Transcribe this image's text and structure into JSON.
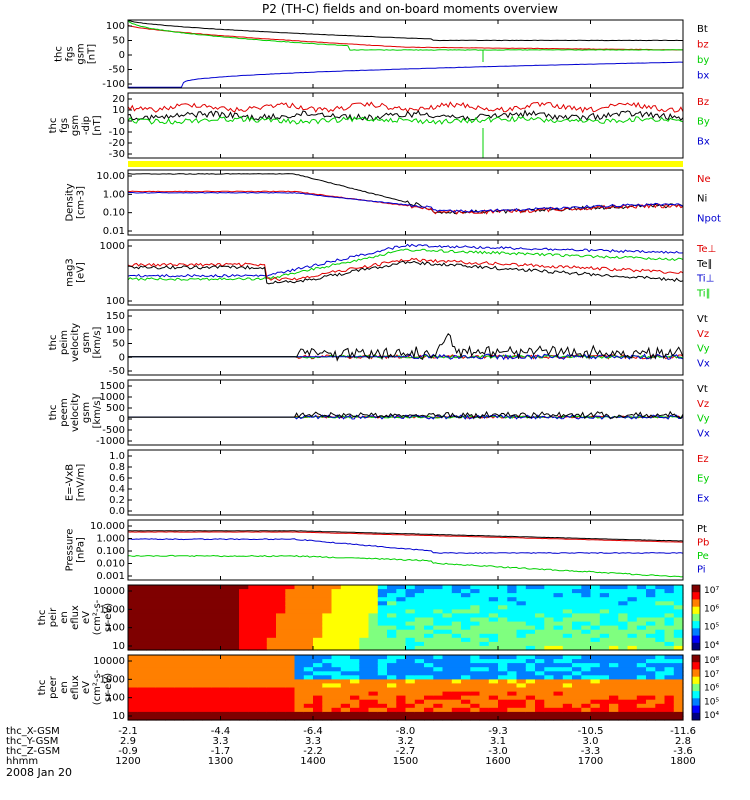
{
  "title": "P2 (TH-C) fields and on-board moments overview",
  "date": "2008 Jan 20",
  "colors": {
    "black": "#000000",
    "red": "#e00000",
    "green": "#00d000",
    "blue": "#0000d0",
    "yellow": "#ffff00"
  },
  "chart_data": [
    {
      "type": "line",
      "ylabel": [
        "thc",
        "fgs",
        "gsm",
        "[nT]"
      ],
      "yticks": [
        "100",
        "50",
        "0",
        "-50",
        "-100"
      ],
      "ylim": [
        -100,
        100
      ],
      "series": [
        {
          "name": "Bt",
          "color": "black"
        },
        {
          "name": "bz",
          "color": "red"
        },
        {
          "name": "by",
          "color": "green"
        },
        {
          "name": "bx",
          "color": "blue"
        }
      ]
    },
    {
      "type": "line",
      "ylabel": [
        "thc",
        "fgs",
        "gsm",
        "-dip",
        "[nT]"
      ],
      "yticks": [
        "20",
        "10",
        "0",
        "-10",
        "-20",
        "-30"
      ],
      "ylim": [
        -35,
        25
      ],
      "series": [
        {
          "name": "Bz",
          "color": "red"
        },
        {
          "name": "By",
          "color": "green"
        },
        {
          "name": "Bx",
          "color": "blue"
        }
      ]
    },
    {
      "type": "line",
      "ylabel": [
        "Density",
        "[cm-3]"
      ],
      "yticks": [
        "10.00",
        "1.00",
        "0.10",
        "0.01"
      ],
      "ylog": true,
      "series": [
        {
          "name": "Ne",
          "color": "red"
        },
        {
          "name": "Ni",
          "color": "black"
        },
        {
          "name": "Npot",
          "color": "blue"
        }
      ]
    },
    {
      "type": "line",
      "ylabel": [
        "mag3",
        "[eV]"
      ],
      "yticks": [
        "1000",
        "100"
      ],
      "ylog": true,
      "series": [
        {
          "name": "Te⊥",
          "color": "red"
        },
        {
          "name": "Te∥",
          "color": "black"
        },
        {
          "name": "Ti⊥",
          "color": "blue"
        },
        {
          "name": "Ti∥",
          "color": "green"
        }
      ]
    },
    {
      "type": "line",
      "ylabel": [
        "thc",
        "peim",
        "velocity",
        "gsm",
        "[km/s]"
      ],
      "yticks": [
        "150",
        "100",
        "50",
        "0",
        "-50"
      ],
      "ylim": [
        -75,
        160
      ],
      "series": [
        {
          "name": "Vt",
          "color": "black"
        },
        {
          "name": "Vz",
          "color": "red"
        },
        {
          "name": "Vy",
          "color": "green"
        },
        {
          "name": "Vx",
          "color": "blue"
        }
      ]
    },
    {
      "type": "line",
      "ylabel": [
        "thc",
        "peem",
        "velocity",
        "gsm",
        "[km/s]"
      ],
      "yticks": [
        "1500",
        "1000",
        "500",
        "0",
        "-500",
        "-1000"
      ],
      "ylim": [
        -1200,
        1600
      ],
      "series": [
        {
          "name": "Vt",
          "color": "black"
        },
        {
          "name": "Vz",
          "color": "red"
        },
        {
          "name": "Vy",
          "color": "green"
        },
        {
          "name": "Vx",
          "color": "blue"
        }
      ]
    },
    {
      "type": "line",
      "ylabel": [
        "E=-VxB",
        "[mV/m]"
      ],
      "yticks": [
        "1.0",
        "0.8",
        "0.6",
        "0.4",
        "0.2",
        "0.0"
      ],
      "ylim": [
        0,
        1
      ],
      "series": [
        {
          "name": "Ez",
          "color": "red"
        },
        {
          "name": "Ey",
          "color": "green"
        },
        {
          "name": "Ex",
          "color": "blue"
        }
      ]
    },
    {
      "type": "line",
      "ylabel": [
        "Pressure",
        "[nPa]"
      ],
      "yticks": [
        "10.000",
        "1.000",
        "0.100",
        "0.010",
        "0.001"
      ],
      "ylog": true,
      "series": [
        {
          "name": "Pt",
          "color": "black"
        },
        {
          "name": "Pb",
          "color": "red"
        },
        {
          "name": "Pe",
          "color": "green"
        },
        {
          "name": "Pi",
          "color": "blue"
        }
      ]
    },
    {
      "type": "heatmap",
      "ylabel": [
        "thc",
        "peir",
        "en",
        "eflux",
        "eV",
        "(cm²-s-",
        "sr-eV)"
      ],
      "yticks": [
        "10000",
        "1000",
        "100",
        "10"
      ],
      "ylog": true,
      "colorbar": [
        "10⁷",
        "10⁶",
        "10⁵",
        "10⁴"
      ]
    },
    {
      "type": "heatmap",
      "ylabel": [
        "thc",
        "peer",
        "en",
        "eflux",
        "eV",
        "(cm²-s-",
        "sr-eV)"
      ],
      "yticks": [
        "10000",
        "1000",
        "100",
        "10"
      ],
      "ylog": true,
      "colorbar": [
        "10⁸",
        "10⁷",
        "10⁶",
        "10⁵",
        "10⁴"
      ]
    }
  ],
  "xaxis": {
    "rows": [
      {
        "label": "thc_X-GSM",
        "values": [
          "-2.1",
          "-4.4",
          "-6.4",
          "-8.0",
          "-9.3",
          "-10.5",
          "-11.6"
        ]
      },
      {
        "label": "thc_Y-GSM",
        "values": [
          "2.9",
          "3.3",
          "3.3",
          "3.2",
          "3.1",
          "3.0",
          "2.8"
        ]
      },
      {
        "label": "thc_Z-GSM",
        "values": [
          "-0.9",
          "-1.7",
          "-2.2",
          "-2.7",
          "-3.0",
          "-3.3",
          "-3.6"
        ]
      },
      {
        "label": "hhmm",
        "values": [
          "1200",
          "1300",
          "1400",
          "1500",
          "1600",
          "1700",
          "1800"
        ]
      }
    ]
  }
}
